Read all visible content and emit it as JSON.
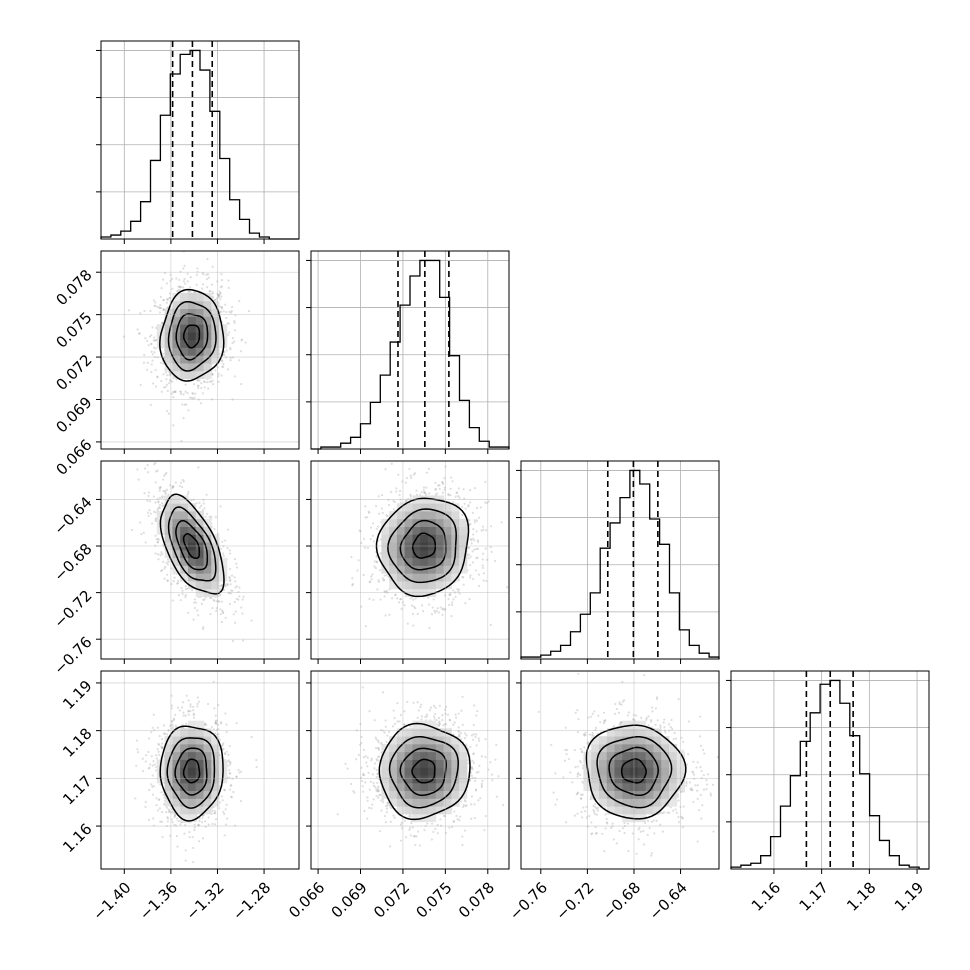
{
  "chart_data": {
    "type": "corner",
    "parameters": [
      {
        "ticks": [
          -1.4,
          -1.36,
          -1.32,
          -1.28
        ],
        "tick_labels": [
          "−1.40",
          "−1.36",
          "−1.32",
          "−1.28"
        ],
        "range": [
          -1.42,
          -1.25
        ],
        "mean": -1.342,
        "sd": 0.0135,
        "quantiles": [
          -1.3585,
          -1.3415,
          -1.3245
        ]
      },
      {
        "ticks": [
          0.066,
          0.069,
          0.072,
          0.075,
          0.078
        ],
        "tick_labels": [
          "0.066",
          "0.069",
          "0.072",
          "0.075",
          "0.078"
        ],
        "range": [
          0.0655,
          0.0795
        ],
        "mean": 0.0735,
        "sd": 0.0016,
        "quantiles": [
          0.07165,
          0.07355,
          0.07525
        ]
      },
      {
        "ticks": [
          -0.76,
          -0.72,
          -0.68,
          -0.64
        ],
        "tick_labels": [
          "−0.76",
          "−0.72",
          "−0.68",
          "−0.64"
        ],
        "range": [
          -0.777,
          -0.607
        ],
        "mean": -0.68,
        "sd": 0.021,
        "quantiles": [
          -0.7025,
          -0.6805,
          -0.6595
        ]
      },
      {
        "ticks": [
          1.16,
          1.17,
          1.18,
          1.19
        ],
        "tick_labels": [
          "1.16",
          "1.17",
          "1.18",
          "1.19"
        ],
        "range": [
          1.151,
          1.1925
        ],
        "mean": 1.1715,
        "sd": 0.0049,
        "quantiles": [
          1.1668,
          1.1718,
          1.1766
        ]
      }
    ],
    "histograms": [
      [
        1,
        2,
        4,
        9,
        19,
        40,
        63,
        84,
        94,
        96,
        86,
        65,
        41,
        20,
        10,
        3,
        1,
        0,
        0,
        0
      ],
      [
        0,
        1,
        1,
        3,
        6,
        13,
        24,
        38,
        55,
        74,
        89,
        97,
        97,
        78,
        48,
        25,
        11,
        4,
        1,
        1
      ],
      [
        1,
        1,
        2,
        4,
        7,
        14,
        23,
        34,
        57,
        70,
        83,
        97,
        90,
        72,
        59,
        34,
        15,
        7,
        3,
        1
      ],
      [
        1,
        2,
        3,
        7,
        17,
        33,
        49,
        67,
        82,
        97,
        99,
        87,
        70,
        50,
        28,
        15,
        7,
        2,
        1,
        0
      ]
    ],
    "correlations": {
      "1-0": 0.05,
      "2-0": -0.55,
      "2-1": 0.08,
      "3-0": 0.02,
      "3-1": 0.03,
      "3-2": -0.03
    },
    "contour_levels_sigma": [
      0.5,
      1.0,
      1.5,
      2.0
    ],
    "grid": true,
    "quantile_lines": "dashed"
  }
}
